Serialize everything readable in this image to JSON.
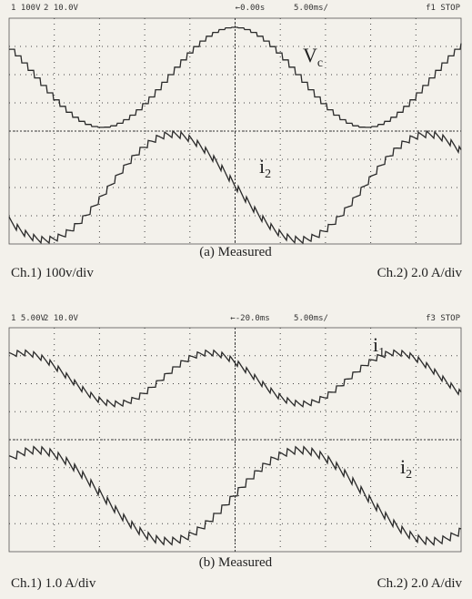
{
  "panels": [
    {
      "header": {
        "ch1": "1 100V",
        "ch2": "2 10.0V",
        "position": "←0.00s",
        "timebase": "5.00ms/",
        "status": "f1 STOP"
      },
      "traces": [
        {
          "symbol": "V",
          "sub": "c"
        },
        {
          "symbol": "i",
          "sub": "2"
        }
      ],
      "caption": "(a) Measured",
      "ch1_scale": "Ch.1) 100v/div",
      "ch2_scale": "Ch.2) 2.0 A/div"
    },
    {
      "header": {
        "ch1": "1 5.00V",
        "ch2": "2 10.0V",
        "position": "←-20.0ms",
        "timebase": "5.00ms/",
        "status": "f3 STOP"
      },
      "traces": [
        {
          "symbol": "i",
          "sub": "1"
        },
        {
          "symbol": "i",
          "sub": "2"
        }
      ],
      "caption": "(b) Measured",
      "ch1_scale": "Ch.1) 1.0 A/div",
      "ch2_scale": "Ch.2) 2.0 A/div"
    }
  ]
}
